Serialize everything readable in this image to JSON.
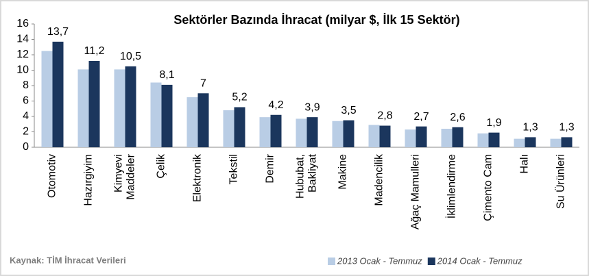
{
  "chart_data": {
    "type": "bar",
    "title": "Sektörler Bazında İhracat (milyar $, İlk 15 Sektör)",
    "categories": [
      "Otomotiv",
      "Hazırgiyim",
      "Kimyevi\nMaddeler",
      "Çelik",
      "Elektronik",
      "Tekstil",
      "Demir",
      "Hububat,\nBakliyat",
      "Makine",
      "Madencilik",
      "Ağaç Mamulleri",
      "İklimlendirme",
      "Çimento Cam",
      "Halı",
      "Su Ürünleri"
    ],
    "series": [
      {
        "name": "2013 Ocak - Temmuz",
        "color": "#b9cde5",
        "values": [
          12.5,
          10.1,
          10.1,
          8.4,
          6.5,
          4.8,
          3.9,
          3.7,
          3.4,
          2.9,
          2.3,
          2.4,
          1.8,
          1.1,
          1.1
        ]
      },
      {
        "name": "2014 Ocak - Temmuz",
        "color": "#1b365d",
        "values": [
          13.7,
          11.2,
          10.5,
          8.1,
          7,
          5.2,
          4.2,
          3.9,
          3.5,
          2.8,
          2.7,
          2.6,
          1.9,
          1.3,
          1.3
        ],
        "value_labels": [
          "13,7",
          "11,2",
          "10,5",
          "8,1",
          "7",
          "5,2",
          "4,2",
          "3,9",
          "3,5",
          "2,8",
          "2,7",
          "2,6",
          "1,9",
          "1,3",
          "1,3"
        ]
      }
    ],
    "ylim": [
      0,
      16
    ],
    "yticks": [
      0,
      2,
      4,
      6,
      8,
      10,
      12,
      14,
      16
    ],
    "grid": false,
    "source": "Kaynak: TİM İhracat Verileri",
    "legend": "bottom-right"
  }
}
